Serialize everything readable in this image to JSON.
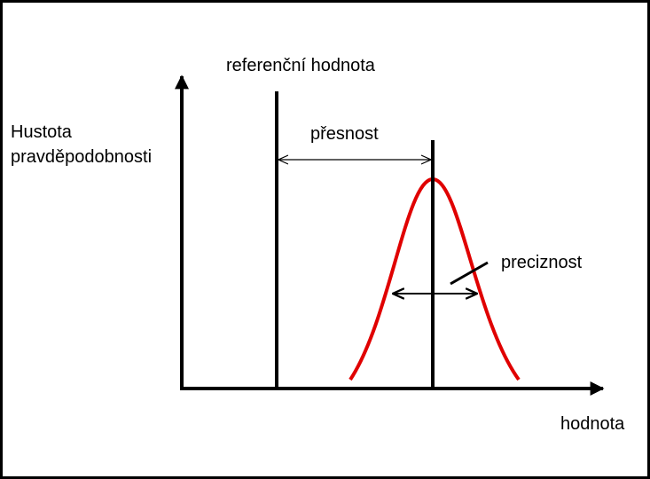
{
  "labels": {
    "reference": "referenční hodnota",
    "y_axis": [
      "Hustota",
      "pravděpodobnosti"
    ],
    "accuracy": "přesnost",
    "precision": "preciznost",
    "x_axis": "hodnota"
  }
}
